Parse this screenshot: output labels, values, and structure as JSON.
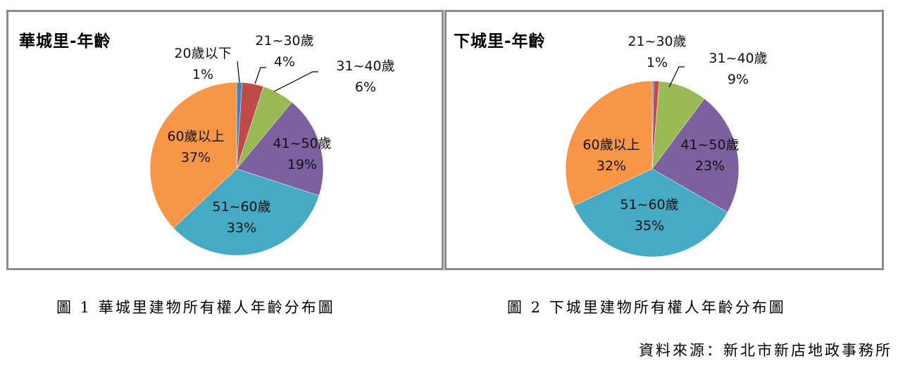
{
  "chart_data": [
    {
      "type": "pie",
      "title": "華城里-年齡",
      "categories": [
        "20歲以下",
        "21~30歲",
        "31~40歲",
        "41~50歲",
        "51~60歲",
        "60歲以上"
      ],
      "values": [
        1,
        4,
        6,
        19,
        33,
        37
      ],
      "unit": "%",
      "colors": [
        "#4a7ebb",
        "#be4b48",
        "#98b954",
        "#7d60a0",
        "#46aac5",
        "#f79646"
      ],
      "labels": [
        "20歲以下",
        "21~30歲",
        "31~40歲",
        "41~50歲",
        "51~60歲",
        "60歲以上"
      ],
      "value_labels": [
        "1%",
        "4%",
        "6%",
        "19%",
        "33%",
        "37%"
      ],
      "legend": "none (data labels)",
      "caption": "圖 1 華城里建物所有權人年齡分布圖"
    },
    {
      "type": "pie",
      "title": "下城里-年齡",
      "categories": [
        "20歲以下",
        "21~30歲",
        "31~40歲",
        "41~50歲",
        "51~60歲",
        "60歲以上"
      ],
      "values": [
        0.3,
        1,
        9,
        23,
        35,
        32
      ],
      "unit": "%",
      "colors": [
        "#4a7ebb",
        "#be4b48",
        "#98b954",
        "#7d60a0",
        "#46aac5",
        "#f79646"
      ],
      "labels": [
        "",
        "21~30歲",
        "31~40歲",
        "41~50歲",
        "51~60歲",
        "60歲以上"
      ],
      "value_labels": [
        "",
        "1%",
        "9%",
        "23%",
        "35%",
        "32%"
      ],
      "legend": "none (data labels)",
      "caption": "圖 2 下城里建物所有權人年齡分布圖"
    }
  ],
  "chart1": {
    "title": "華城里-年齡",
    "labels": [
      {
        "name": "20歲以下",
        "pct": "1%"
      },
      {
        "name": "21~30歲",
        "pct": "4%"
      },
      {
        "name": "31~40歲",
        "pct": "6%"
      },
      {
        "name": "41~50歲",
        "pct": "19%"
      },
      {
        "name": "51~60歲",
        "pct": "33%"
      },
      {
        "name": "60歲以上",
        "pct": "37%"
      }
    ]
  },
  "chart2": {
    "title": "下城里-年齡",
    "labels": [
      {
        "name": "21~30歲",
        "pct": "1%"
      },
      {
        "name": "31~40歲",
        "pct": "9%"
      },
      {
        "name": "41~50歲",
        "pct": "23%"
      },
      {
        "name": "51~60歲",
        "pct": "35%"
      },
      {
        "name": "60歲以上",
        "pct": "32%"
      }
    ]
  },
  "captions": {
    "fig1": "圖 1 華城里建物所有權人年齡分布圖",
    "fig2": "圖 2 下城里建物所有權人年齡分布圖",
    "source": "資料來源：新北市新店地政事務所"
  }
}
